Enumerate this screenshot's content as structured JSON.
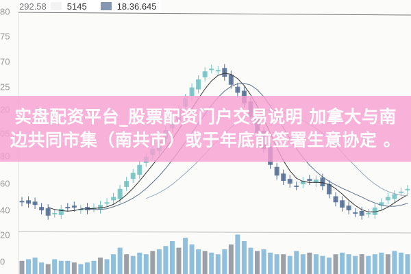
{
  "legend": {
    "value1": "292.58",
    "value2": "5145",
    "value3": "18.36.645",
    "swatch2_color": "#f3f3f3",
    "swatch3_color": "#8496b0"
  },
  "y_axis_labels": [
    "80",
    "75",
    "70",
    "25",
    "20",
    "05",
    "80",
    "60",
    "40",
    "20",
    "0"
  ],
  "headline": {
    "line1": "实盘配资平台_股票配资门户交易说明 加拿大与南",
    "line2": "边共同市集（南共市）或于年底前签署生意协定 。"
  },
  "colors": {
    "banner": "#f7a0d2",
    "up": "#6fbfbf",
    "down": "#4d6890",
    "ma1": "#333333",
    "ma2": "#5a6f8a",
    "ma3": "#9aa8b8",
    "volume": "#7cb4d6"
  },
  "chart": {
    "type": "candlestick",
    "closes": [
      46,
      45,
      44,
      40,
      36,
      38,
      41,
      42,
      42,
      41,
      40,
      42,
      44,
      46,
      50,
      56,
      62,
      68,
      74,
      80,
      86,
      92,
      100,
      108,
      116,
      124,
      132,
      138,
      144,
      146,
      145,
      140,
      134,
      128,
      120,
      110,
      98,
      86,
      74,
      66,
      62,
      60,
      58,
      62,
      62,
      63,
      58,
      52,
      46,
      42,
      40,
      38,
      36,
      38,
      42,
      46,
      50,
      52,
      54,
      56
    ],
    "volume": [
      8,
      9,
      10,
      7,
      6,
      9,
      8,
      8,
      7,
      6,
      7,
      8,
      10,
      9,
      12,
      16,
      12,
      11,
      13,
      12,
      14,
      15,
      17,
      20,
      16,
      22,
      18,
      15,
      14,
      13,
      12,
      15,
      18,
      24,
      20,
      16,
      14,
      15,
      13,
      12,
      12,
      11,
      14,
      12,
      13,
      12,
      11,
      10,
      12,
      13,
      12,
      11,
      12,
      11,
      12,
      13,
      12,
      14,
      13,
      12
    ]
  }
}
